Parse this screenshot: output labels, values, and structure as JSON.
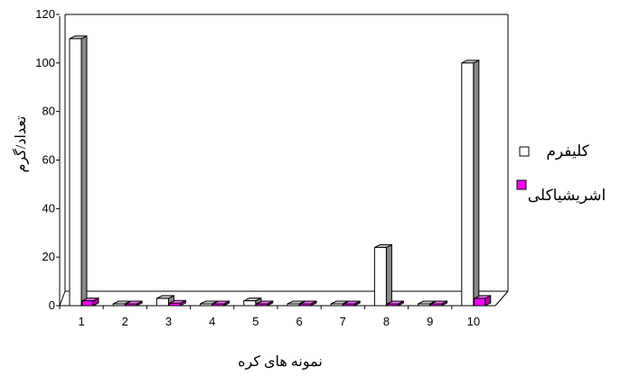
{
  "chart_data": {
    "type": "bar",
    "categories": [
      "1",
      "2",
      "3",
      "4",
      "5",
      "6",
      "7",
      "8",
      "9",
      "10"
    ],
    "series": [
      {
        "name": "کلیفرم",
        "values": [
          110,
          0,
          3,
          0,
          2,
          0,
          0,
          24,
          0,
          100
        ],
        "color": "#ffffff"
      },
      {
        "name": "اشریشیاکلی",
        "values": [
          2,
          0,
          1,
          0,
          0,
          0,
          0,
          0,
          0,
          3
        ],
        "color": "#ff00ff"
      }
    ],
    "xlabel": "نمونه های کره",
    "ylabel": "تعداد/گرم",
    "ylim": [
      0,
      120
    ],
    "yticks": [
      "0",
      "20",
      "40",
      "60",
      "80",
      "100",
      "120"
    ],
    "grid": false,
    "legend_position": "right",
    "style": "3d-column",
    "colors": {
      "side": "#888888",
      "top": "#cccccc",
      "axis": "#000000"
    }
  }
}
